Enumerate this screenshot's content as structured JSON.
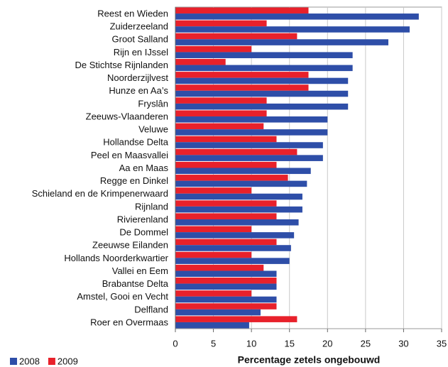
{
  "chart_data": {
    "type": "barh",
    "xlabel": "Percentage zetels ongebouwd",
    "categories": [
      "Reest en Wieden",
      "Zuiderzeeland",
      "Groot Salland",
      "Rijn en IJssel",
      "De Stichtse Rijnlanden",
      "Noorderzijlvest",
      "Hunze en Aa’s",
      "Fryslân",
      "Zeeuws-Vlaanderen",
      "Veluwe",
      "Hollandse Delta",
      "Peel en Maasvallei",
      "Aa en Maas",
      "Regge en Dinkel",
      "Schieland en de Krimpenerwaard",
      "Rijnland",
      "Rivierenland",
      "De Dommel",
      "Zeeuwse Eilanden",
      "Hollands Noorderkwartier",
      "Vallei en Eem",
      "Brabantse Delta",
      "Amstel, Gooi en Vecht",
      "Delfland",
      "Roer en Overmaas"
    ],
    "series": [
      {
        "name": "2008",
        "color": "#2e4ea8",
        "values": [
          32,
          30.8,
          28,
          23.3,
          23.3,
          22.7,
          22.7,
          22.7,
          20,
          20,
          19.4,
          19.4,
          17.8,
          17.3,
          16.7,
          16.7,
          16.2,
          15.6,
          15.2,
          15,
          13.3,
          13.3,
          13.3,
          11.2,
          9.7
        ]
      },
      {
        "name": "2009",
        "color": "#e8212b",
        "values": [
          17.5,
          12,
          16,
          10,
          6.6,
          17.5,
          17.5,
          12,
          12,
          11.6,
          13.3,
          16,
          13.3,
          14.8,
          10,
          13.3,
          13.3,
          10,
          13.3,
          10,
          11.6,
          13.3,
          10,
          13.3,
          16
        ]
      }
    ],
    "xlim": [
      0,
      35
    ],
    "xticks": [
      0,
      5,
      10,
      15,
      20,
      25,
      30,
      35
    ],
    "grid": true,
    "legend": "bottom-left"
  }
}
